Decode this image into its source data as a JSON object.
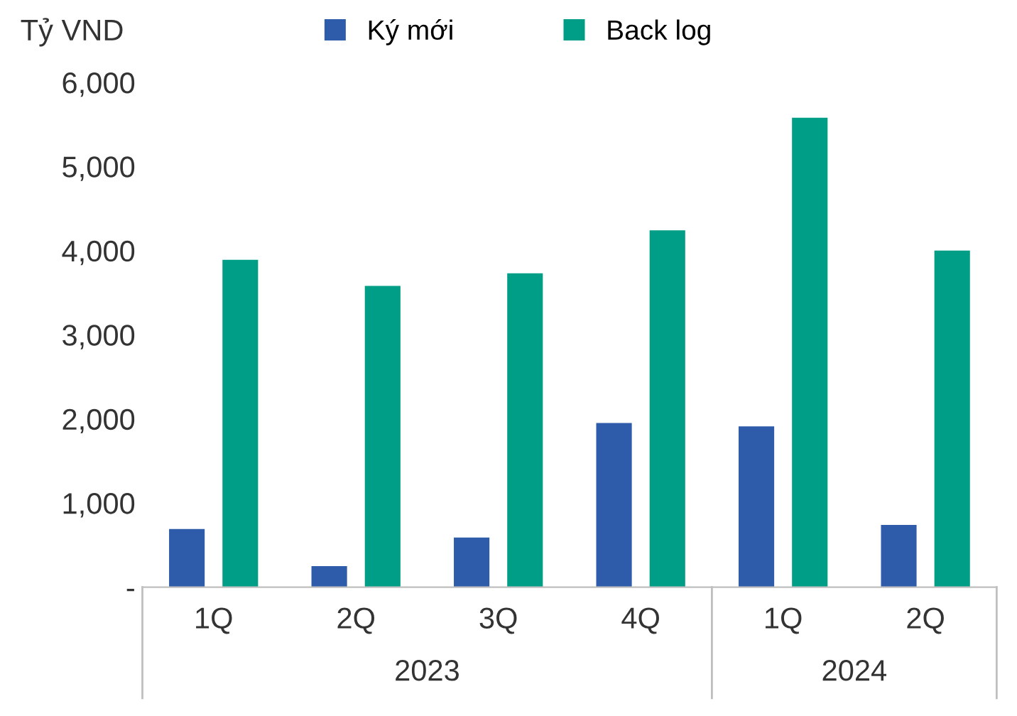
{
  "chart_data": {
    "type": "bar",
    "ylabel": "Tỷ VND",
    "categories": [
      "1Q",
      "2Q",
      "3Q",
      "4Q",
      "1Q",
      "2Q"
    ],
    "series": [
      {
        "name": "Ký mới",
        "color": "#2e5caa",
        "values": [
          690,
          250,
          590,
          1950,
          1910,
          740
        ]
      },
      {
        "name": "Back log",
        "color": "#009e86",
        "values": [
          3890,
          3580,
          3730,
          4240,
          5580,
          4000
        ]
      }
    ],
    "ylim": [
      0,
      6000
    ],
    "yticks": [
      {
        "value": 0,
        "label": "-"
      },
      {
        "value": 1000,
        "label": "1,000"
      },
      {
        "value": 2000,
        "label": "2,000"
      },
      {
        "value": 3000,
        "label": "3,000"
      },
      {
        "value": 4000,
        "label": "4,000"
      },
      {
        "value": 5000,
        "label": "5,000"
      },
      {
        "value": 6000,
        "label": "6,000"
      }
    ],
    "annotations": [
      "2023",
      "2024"
    ],
    "grid": false,
    "legend": "top"
  }
}
